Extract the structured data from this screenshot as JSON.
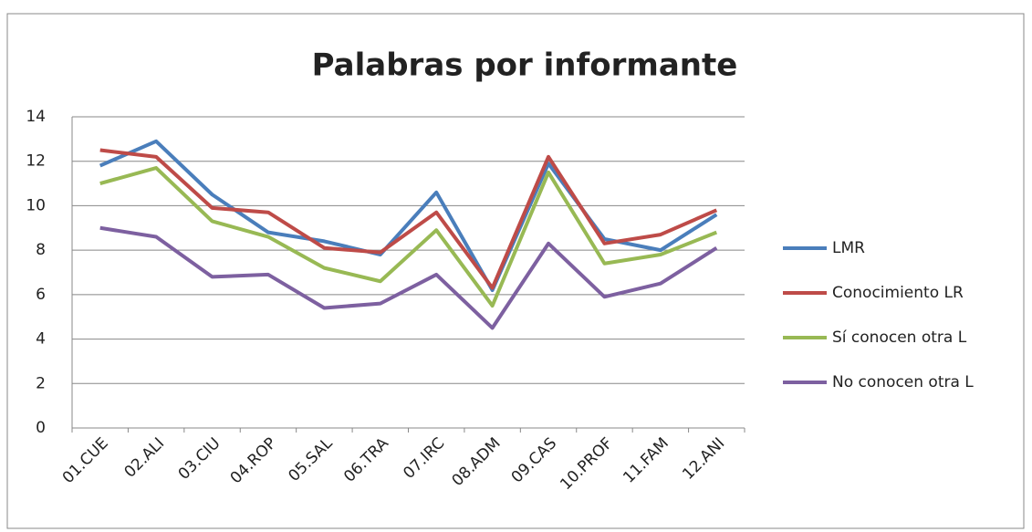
{
  "chart_data": {
    "type": "line",
    "title": "Palabras por informante",
    "categories": [
      "01.CUE",
      "02.ALI",
      "03.CIU",
      "04.ROP",
      "05.SAL",
      "06.TRA",
      "07.IRC",
      "08.ADM",
      "09.CAS",
      "10.PROF",
      "11.FAM",
      "12.ANI"
    ],
    "series": [
      {
        "name": "LMR",
        "color": "#4a7ebb",
        "values": [
          11.8,
          12.9,
          10.5,
          8.8,
          8.4,
          7.8,
          10.6,
          6.2,
          11.9,
          8.5,
          8.0,
          9.6
        ]
      },
      {
        "name": "Conocimiento LR",
        "color": "#be4b48",
        "values": [
          12.5,
          12.2,
          9.9,
          9.7,
          8.1,
          7.9,
          9.7,
          6.3,
          12.2,
          8.3,
          8.7,
          9.8
        ]
      },
      {
        "name": "Sí conocen otra L",
        "color": "#98b954",
        "values": [
          11.0,
          11.7,
          9.3,
          8.6,
          7.2,
          6.6,
          8.9,
          5.5,
          11.5,
          7.4,
          7.8,
          8.8
        ]
      },
      {
        "name": "No conocen otra L",
        "color": "#7d60a0",
        "values": [
          9.0,
          8.6,
          6.8,
          6.9,
          5.4,
          5.6,
          6.9,
          4.5,
          8.3,
          5.9,
          6.5,
          8.1
        ]
      }
    ],
    "ylim": [
      0,
      14
    ],
    "yticks": [
      0,
      2,
      4,
      6,
      8,
      10,
      12,
      14
    ],
    "grid": true,
    "legend": "right"
  }
}
